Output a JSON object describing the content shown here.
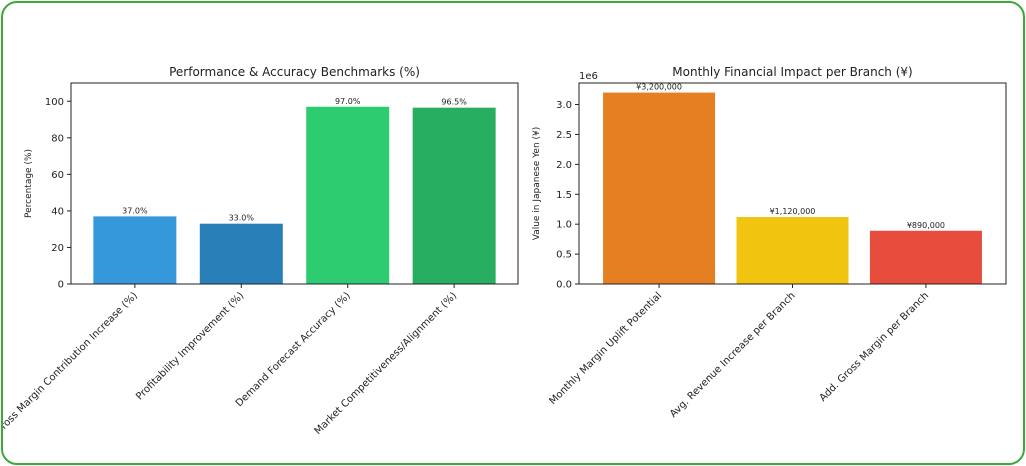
{
  "chart_data": [
    {
      "type": "bar",
      "title": "Performance & Accuracy Benchmarks (%)",
      "ylabel": "Percentage (%)",
      "xlabel": "",
      "ylim": [
        0,
        110
      ],
      "yticks": [
        0,
        20,
        40,
        60,
        80,
        100
      ],
      "categories": [
        "Gross Margin Contribution Increase (%)",
        "Profitability Improvement (%)",
        "Demand Forecast Accuracy (%)",
        "Market Competitiveness/Alignment (%)"
      ],
      "values": [
        37.0,
        33.0,
        97.0,
        96.5
      ],
      "data_labels": [
        "37.0%",
        "33.0%",
        "97.0%",
        "96.5%"
      ],
      "colors": [
        "#3498db",
        "#2980b9",
        "#2ecc71",
        "#27ae60"
      ],
      "grid": false
    },
    {
      "type": "bar",
      "title": "Monthly Financial Impact per Branch (¥)",
      "ylabel": "Value in Japanese Yen (¥)",
      "xlabel": "",
      "ylim": [
        0,
        3360000
      ],
      "yticks": [
        0,
        500000,
        1000000,
        1500000,
        2000000,
        2500000,
        3000000
      ],
      "ytick_labels": [
        "0.0",
        "0.5",
        "1.0",
        "1.5",
        "2.0",
        "2.5",
        "3.0"
      ],
      "offset_text": "1e6",
      "categories": [
        "Monthly Margin Uplift Potential",
        "Avg. Revenue Increase per Branch",
        "Add. Gross Margin per Branch"
      ],
      "values": [
        3200000,
        1120000,
        890000
      ],
      "data_labels": [
        "¥3,200,000",
        "¥1,120,000",
        "¥890,000"
      ],
      "colors": [
        "#e67e22",
        "#f1c40f",
        "#e74c3c"
      ],
      "grid": false
    }
  ]
}
